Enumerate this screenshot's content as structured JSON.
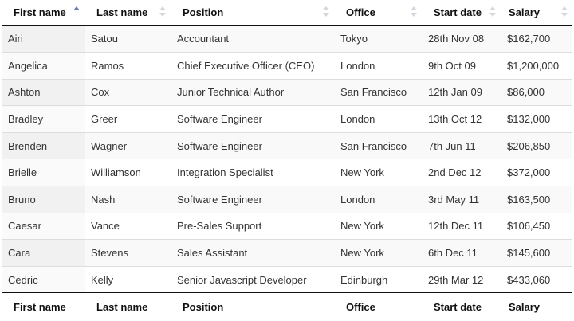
{
  "columns": [
    {
      "label": "First name",
      "sort": "asc"
    },
    {
      "label": "Last name",
      "sort": "none"
    },
    {
      "label": "Position",
      "sort": "none"
    },
    {
      "label": "Office",
      "sort": "none"
    },
    {
      "label": "Start date",
      "sort": "none"
    },
    {
      "label": "Salary",
      "sort": "none"
    }
  ],
  "rows": [
    [
      "Airi",
      "Satou",
      "Accountant",
      "Tokyo",
      "28th Nov 08",
      "$162,700"
    ],
    [
      "Angelica",
      "Ramos",
      "Chief Executive Officer (CEO)",
      "London",
      "9th Oct 09",
      "$1,200,000"
    ],
    [
      "Ashton",
      "Cox",
      "Junior Technical Author",
      "San Francisco",
      "12th Jan 09",
      "$86,000"
    ],
    [
      "Bradley",
      "Greer",
      "Software Engineer",
      "London",
      "13th Oct 12",
      "$132,000"
    ],
    [
      "Brenden",
      "Wagner",
      "Software Engineer",
      "San Francisco",
      "7th Jun 11",
      "$206,850"
    ],
    [
      "Brielle",
      "Williamson",
      "Integration Specialist",
      "New York",
      "2nd Dec 12",
      "$372,000"
    ],
    [
      "Bruno",
      "Nash",
      "Software Engineer",
      "London",
      "3rd May 11",
      "$163,500"
    ],
    [
      "Caesar",
      "Vance",
      "Pre-Sales Support",
      "New York",
      "12th Dec 11",
      "$106,450"
    ],
    [
      "Cara",
      "Stevens",
      "Sales Assistant",
      "New York",
      "6th Dec 11",
      "$145,600"
    ],
    [
      "Cedric",
      "Kelly",
      "Senior Javascript Developer",
      "Edinburgh",
      "29th Mar 12",
      "$433,060"
    ]
  ],
  "footer": [
    "First name",
    "Last name",
    "Position",
    "Office",
    "Start date",
    "Salary"
  ],
  "colors": {
    "sort_active": "#6b7ab6",
    "sort_inactive": "#d3d6db",
    "row_stripe": "#f9f9f9",
    "sorted_column": "#f1f1f1"
  }
}
